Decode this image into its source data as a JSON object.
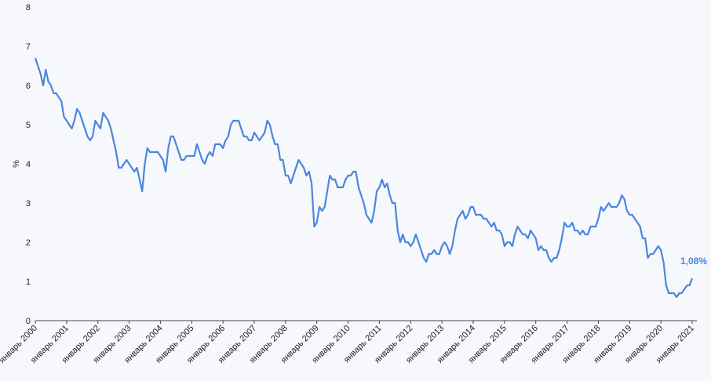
{
  "chart_data": {
    "type": "line",
    "y_label": "%",
    "annotation": "1,08%",
    "x": [
      "2000-01",
      "2000-02",
      "2000-03",
      "2000-04",
      "2000-05",
      "2000-06",
      "2000-07",
      "2000-08",
      "2000-09",
      "2000-10",
      "2000-11",
      "2000-12",
      "2001-01",
      "2001-02",
      "2001-03",
      "2001-04",
      "2001-05",
      "2001-06",
      "2001-07",
      "2001-08",
      "2001-09",
      "2001-10",
      "2001-11",
      "2001-12",
      "2002-01",
      "2002-02",
      "2002-03",
      "2002-04",
      "2002-05",
      "2002-06",
      "2002-07",
      "2002-08",
      "2002-09",
      "2002-10",
      "2002-11",
      "2002-12",
      "2003-01",
      "2003-02",
      "2003-03",
      "2003-04",
      "2003-05",
      "2003-06",
      "2003-07",
      "2003-08",
      "2003-09",
      "2003-10",
      "2003-11",
      "2003-12",
      "2004-01",
      "2004-02",
      "2004-03",
      "2004-04",
      "2004-05",
      "2004-06",
      "2004-07",
      "2004-08",
      "2004-09",
      "2004-10",
      "2004-11",
      "2004-12",
      "2005-01",
      "2005-02",
      "2005-03",
      "2005-04",
      "2005-05",
      "2005-06",
      "2005-07",
      "2005-08",
      "2005-09",
      "2005-10",
      "2005-11",
      "2005-12",
      "2006-01",
      "2006-02",
      "2006-03",
      "2006-04",
      "2006-05",
      "2006-06",
      "2006-07",
      "2006-08",
      "2006-09",
      "2006-10",
      "2006-11",
      "2006-12",
      "2007-01",
      "2007-02",
      "2007-03",
      "2007-04",
      "2007-05",
      "2007-06",
      "2007-07",
      "2007-08",
      "2007-09",
      "2007-10",
      "2007-11",
      "2007-12",
      "2008-01",
      "2008-02",
      "2008-03",
      "2008-04",
      "2008-05",
      "2008-06",
      "2008-07",
      "2008-08",
      "2008-09",
      "2008-10",
      "2008-11",
      "2008-12",
      "2009-01",
      "2009-02",
      "2009-03",
      "2009-04",
      "2009-05",
      "2009-06",
      "2009-07",
      "2009-08",
      "2009-09",
      "2009-10",
      "2009-11",
      "2009-12",
      "2010-01",
      "2010-02",
      "2010-03",
      "2010-04",
      "2010-05",
      "2010-06",
      "2010-07",
      "2010-08",
      "2010-09",
      "2010-10",
      "2010-11",
      "2010-12",
      "2011-01",
      "2011-02",
      "2011-03",
      "2011-04",
      "2011-05",
      "2011-06",
      "2011-07",
      "2011-08",
      "2011-09",
      "2011-10",
      "2011-11",
      "2011-12",
      "2012-01",
      "2012-02",
      "2012-03",
      "2012-04",
      "2012-05",
      "2012-06",
      "2012-07",
      "2012-08",
      "2012-09",
      "2012-10",
      "2012-11",
      "2012-12",
      "2013-01",
      "2013-02",
      "2013-03",
      "2013-04",
      "2013-05",
      "2013-06",
      "2013-07",
      "2013-08",
      "2013-09",
      "2013-10",
      "2013-11",
      "2013-12",
      "2014-01",
      "2014-02",
      "2014-03",
      "2014-04",
      "2014-05",
      "2014-06",
      "2014-07",
      "2014-08",
      "2014-09",
      "2014-10",
      "2014-11",
      "2014-12",
      "2015-01",
      "2015-02",
      "2015-03",
      "2015-04",
      "2015-05",
      "2015-06",
      "2015-07",
      "2015-08",
      "2015-09",
      "2015-10",
      "2015-11",
      "2015-12",
      "2016-01",
      "2016-02",
      "2016-03",
      "2016-04",
      "2016-05",
      "2016-06",
      "2016-07",
      "2016-08",
      "2016-09",
      "2016-10",
      "2016-11",
      "2016-12",
      "2017-01",
      "2017-02",
      "2017-03",
      "2017-04",
      "2017-05",
      "2017-06",
      "2017-07",
      "2017-08",
      "2017-09",
      "2017-10",
      "2017-11",
      "2017-12",
      "2018-01",
      "2018-02",
      "2018-03",
      "2018-04",
      "2018-05",
      "2018-06",
      "2018-07",
      "2018-08",
      "2018-09",
      "2018-10",
      "2018-11",
      "2018-12",
      "2019-01",
      "2019-02",
      "2019-03",
      "2019-04",
      "2019-05",
      "2019-06",
      "2019-07",
      "2019-08",
      "2019-09",
      "2019-10",
      "2019-11",
      "2019-12",
      "2020-01",
      "2020-02",
      "2020-03",
      "2020-04",
      "2020-05",
      "2020-06",
      "2020-07",
      "2020-08",
      "2020-09",
      "2020-10",
      "2020-11",
      "2020-12",
      "2021-01"
    ],
    "series": [
      {
        "color": "#4a86e0",
        "values": [
          6.7,
          6.5,
          6.3,
          6.0,
          6.4,
          6.1,
          6.0,
          5.8,
          5.8,
          5.7,
          5.6,
          5.2,
          5.1,
          5.0,
          4.9,
          5.1,
          5.4,
          5.3,
          5.1,
          4.9,
          4.7,
          4.6,
          4.7,
          5.1,
          5.0,
          4.9,
          5.3,
          5.2,
          5.1,
          4.9,
          4.6,
          4.3,
          3.9,
          3.9,
          4.0,
          4.1,
          4.0,
          3.9,
          3.8,
          3.9,
          3.6,
          3.3,
          4.0,
          4.4,
          4.3,
          4.3,
          4.3,
          4.3,
          4.2,
          4.1,
          3.8,
          4.4,
          4.7,
          4.7,
          4.5,
          4.3,
          4.1,
          4.1,
          4.2,
          4.2,
          4.2,
          4.2,
          4.5,
          4.3,
          4.1,
          4.0,
          4.2,
          4.3,
          4.2,
          4.5,
          4.5,
          4.5,
          4.4,
          4.6,
          4.7,
          5.0,
          5.1,
          5.1,
          5.1,
          4.9,
          4.7,
          4.7,
          4.6,
          4.6,
          4.8,
          4.7,
          4.6,
          4.7,
          4.8,
          5.1,
          5.0,
          4.7,
          4.5,
          4.5,
          4.1,
          4.1,
          3.7,
          3.7,
          3.5,
          3.7,
          3.9,
          4.1,
          4.0,
          3.9,
          3.7,
          3.8,
          3.5,
          2.4,
          2.5,
          2.9,
          2.8,
          2.9,
          3.3,
          3.7,
          3.6,
          3.6,
          3.4,
          3.4,
          3.4,
          3.6,
          3.7,
          3.7,
          3.8,
          3.8,
          3.4,
          3.2,
          3.0,
          2.7,
          2.6,
          2.5,
          2.8,
          3.3,
          3.4,
          3.6,
          3.4,
          3.5,
          3.2,
          3.0,
          3.0,
          2.3,
          2.0,
          2.2,
          2.0,
          2.0,
          1.9,
          2.0,
          2.2,
          2.0,
          1.8,
          1.6,
          1.5,
          1.7,
          1.7,
          1.8,
          1.7,
          1.7,
          1.9,
          2.0,
          1.9,
          1.7,
          1.9,
          2.3,
          2.6,
          2.7,
          2.8,
          2.6,
          2.7,
          2.9,
          2.9,
          2.7,
          2.7,
          2.7,
          2.6,
          2.6,
          2.5,
          2.4,
          2.5,
          2.3,
          2.3,
          2.2,
          1.9,
          2.0,
          2.0,
          1.9,
          2.2,
          2.4,
          2.3,
          2.2,
          2.2,
          2.1,
          2.3,
          2.2,
          2.1,
          1.8,
          1.9,
          1.8,
          1.8,
          1.6,
          1.5,
          1.6,
          1.6,
          1.8,
          2.1,
          2.5,
          2.4,
          2.4,
          2.5,
          2.3,
          2.3,
          2.2,
          2.3,
          2.2,
          2.2,
          2.4,
          2.4,
          2.4,
          2.6,
          2.9,
          2.8,
          2.9,
          3.0,
          2.9,
          2.9,
          2.9,
          3.0,
          3.2,
          3.1,
          2.8,
          2.7,
          2.7,
          2.6,
          2.5,
          2.4,
          2.1,
          2.1,
          1.6,
          1.7,
          1.7,
          1.8,
          1.9,
          1.8,
          1.5,
          0.9,
          0.7,
          0.7,
          0.7,
          0.6,
          0.7,
          0.7,
          0.8,
          0.9,
          0.9,
          1.08
        ]
      }
    ],
    "ylim": [
      0,
      8
    ],
    "yticks": [
      0,
      1,
      2,
      3,
      4,
      5,
      6,
      7,
      8
    ],
    "xticks": [
      {
        "value": "2000-01",
        "label": "январь 2000"
      },
      {
        "value": "2001-01",
        "label": "январь 2001"
      },
      {
        "value": "2002-01",
        "label": "январь 2002"
      },
      {
        "value": "2003-01",
        "label": "январь 2003"
      },
      {
        "value": "2004-01",
        "label": "январь 2004"
      },
      {
        "value": "2005-01",
        "label": "январь 2005"
      },
      {
        "value": "2006-01",
        "label": "январь 2006"
      },
      {
        "value": "2007-01",
        "label": "январь 2007"
      },
      {
        "value": "2008-01",
        "label": "январь 2008"
      },
      {
        "value": "2009-01",
        "label": "январь 2009"
      },
      {
        "value": "2010-01",
        "label": "январь 2010"
      },
      {
        "value": "2011-01",
        "label": "январь 2011"
      },
      {
        "value": "2012-01",
        "label": "январь 2012"
      },
      {
        "value": "2013-01",
        "label": "январь 2013"
      },
      {
        "value": "2014-01",
        "label": "январь 2014"
      },
      {
        "value": "2015-01",
        "label": "январь 2015"
      },
      {
        "value": "2016-01",
        "label": "январь 2016"
      },
      {
        "value": "2017-01",
        "label": "январь 2017"
      },
      {
        "value": "2018-01",
        "label": "январь 2018"
      },
      {
        "value": "2019-01",
        "label": "январь 2019"
      },
      {
        "value": "2020-01",
        "label": "январь 2020"
      },
      {
        "value": "2021-01",
        "label": "январь 2021"
      }
    ]
  }
}
